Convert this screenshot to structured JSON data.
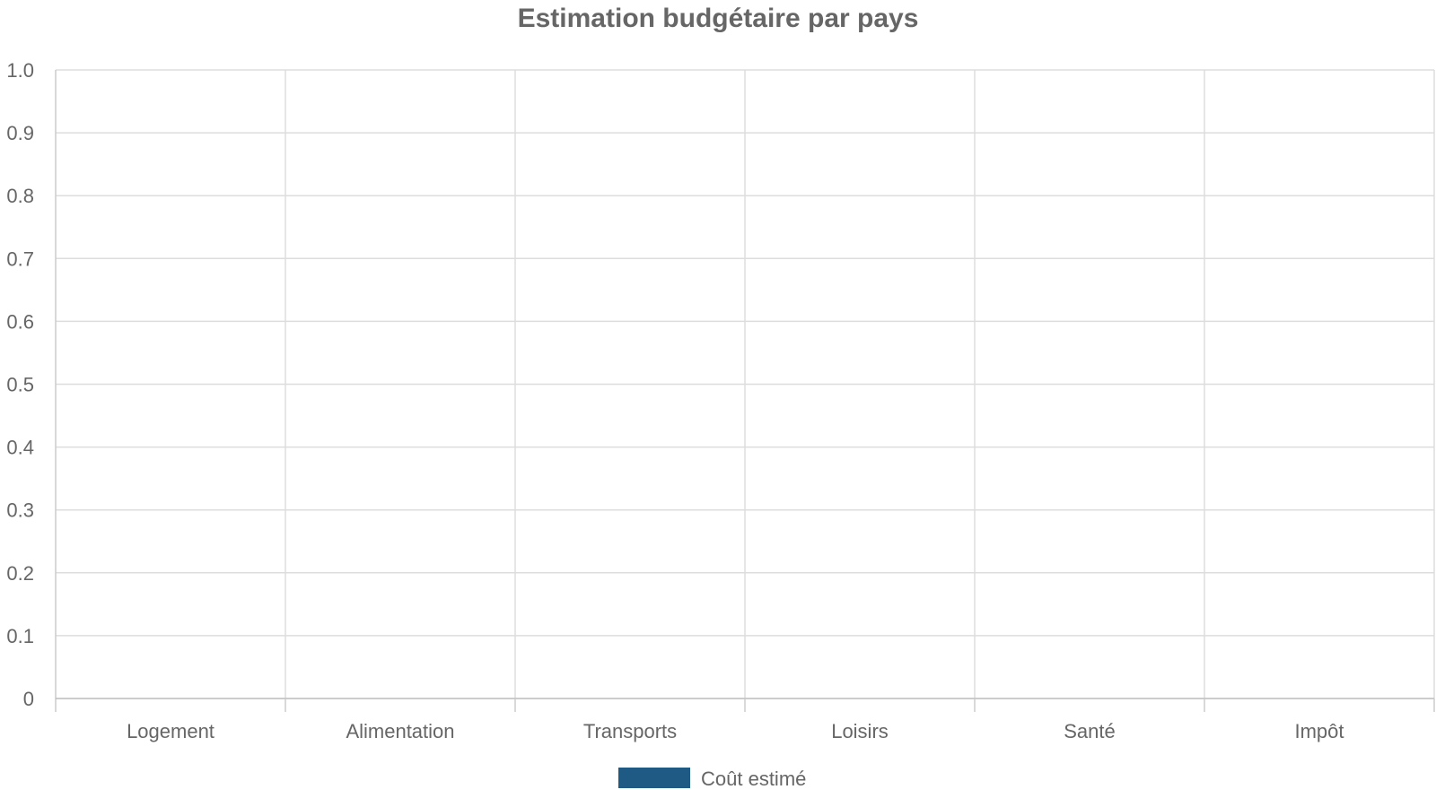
{
  "chart_data": {
    "type": "bar",
    "title": "Estimation budgétaire par pays",
    "categories": [
      "Logement",
      "Alimentation",
      "Transports",
      "Loisirs",
      "Santé",
      "Impôt"
    ],
    "series": [
      {
        "name": "Coût estimé",
        "values": [
          0,
          0,
          0,
          0,
          0,
          0
        ],
        "color": "#1f5a85"
      }
    ],
    "yticks": [
      "0",
      "0.1",
      "0.2",
      "0.3",
      "0.4",
      "0.5",
      "0.6",
      "0.7",
      "0.8",
      "0.9",
      "1.0"
    ],
    "ylim": [
      0,
      1
    ],
    "grid": true,
    "legend_position": "bottom-center"
  }
}
